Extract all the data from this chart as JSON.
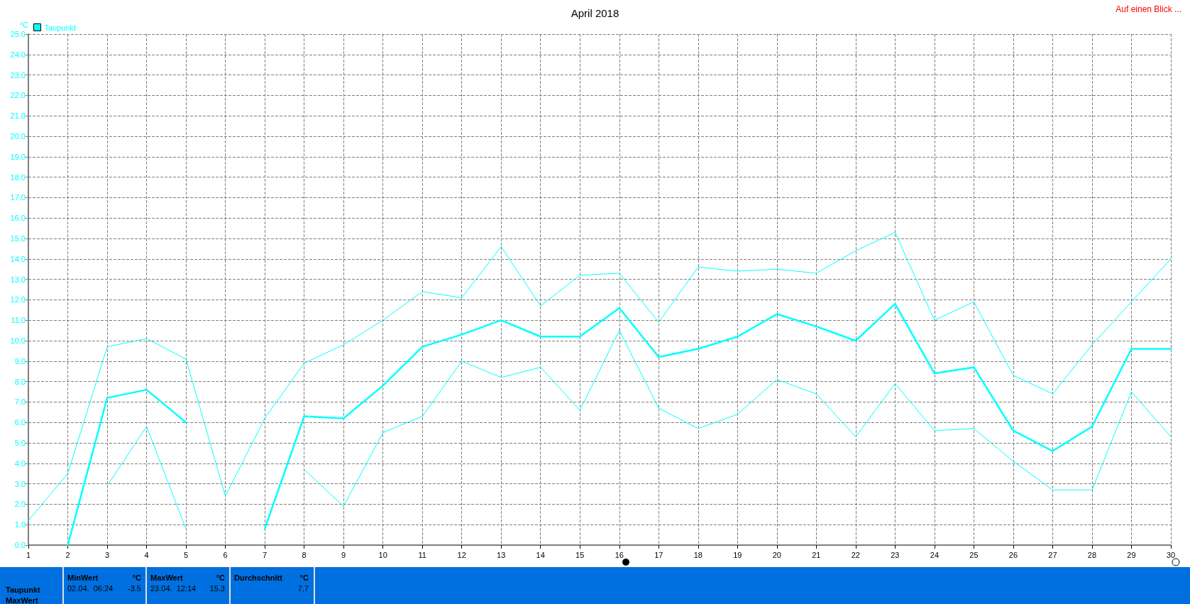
{
  "chart_data": {
    "type": "line",
    "title": "April 2018",
    "ylabel": "°C",
    "legend": "top left",
    "grid": true,
    "marker": "none",
    "line_style": "solid",
    "x": [
      1,
      2,
      3,
      4,
      5,
      6,
      7,
      8,
      9,
      10,
      11,
      12,
      13,
      14,
      15,
      16,
      17,
      18,
      19,
      20,
      21,
      22,
      23,
      24,
      25,
      26,
      27,
      28,
      29,
      30
    ],
    "xlim": [
      1,
      30
    ],
    "xticks": [
      1,
      2,
      3,
      4,
      5,
      6,
      7,
      8,
      9,
      10,
      11,
      12,
      13,
      14,
      15,
      16,
      17,
      18,
      19,
      20,
      21,
      22,
      23,
      24,
      25,
      26,
      27,
      28,
      29,
      30
    ],
    "ylim": [
      0,
      25
    ],
    "yticks": [
      {
        "value": 0,
        "label": "0.0"
      },
      {
        "value": 1,
        "label": "1.0"
      },
      {
        "value": 2,
        "label": "2.0"
      },
      {
        "value": 3,
        "label": "3.0"
      },
      {
        "value": 4,
        "label": "4.0"
      },
      {
        "value": 5,
        "label": "5.0"
      },
      {
        "value": 6,
        "label": "6.0"
      },
      {
        "value": 7,
        "label": "7.0"
      },
      {
        "value": 8,
        "label": "8.0"
      },
      {
        "value": 9,
        "label": "9.0"
      },
      {
        "value": 10,
        "label": "10.0"
      },
      {
        "value": 11,
        "label": "11.0"
      },
      {
        "value": 12,
        "label": "12.0"
      },
      {
        "value": 13,
        "label": "13.0"
      },
      {
        "value": 14,
        "label": "14.0"
      },
      {
        "value": 15,
        "label": "15.0"
      },
      {
        "value": 16,
        "label": "16.0"
      },
      {
        "value": 17,
        "label": "17.0"
      },
      {
        "value": 18,
        "label": "18.0"
      },
      {
        "value": 19,
        "label": "19.0"
      },
      {
        "value": 20,
        "label": "20.0"
      },
      {
        "value": 21,
        "label": "21.0"
      },
      {
        "value": 22,
        "label": "22.0"
      },
      {
        "value": 23,
        "label": "23.0"
      },
      {
        "value": 24,
        "label": "24.0"
      },
      {
        "value": 25,
        "label": "25.0"
      }
    ],
    "series": [
      {
        "color": "#00ffff",
        "values": [
          1.2,
          3.5,
          9.7,
          10.1,
          9.1,
          2.4,
          6.2,
          8.9,
          9.8,
          11.0,
          12.4,
          12.1,
          14.6,
          11.7,
          13.2,
          13.3,
          10.9,
          13.6,
          13.4,
          13.5,
          13.3,
          14.4,
          15.3,
          11.0,
          11.9,
          8.3,
          7.4,
          9.8,
          11.9,
          14.0
        ]
      },
      {
        "name": "Taupunkt",
        "color": "#00ffff",
        "values": [
          null,
          0.0,
          7.2,
          7.6,
          6.0,
          null,
          0.8,
          6.3,
          6.2,
          7.8,
          9.7,
          10.3,
          11.0,
          10.2,
          10.2,
          11.6,
          9.2,
          9.6,
          10.2,
          11.3,
          10.7,
          10.0,
          11.8,
          8.4,
          8.7,
          5.6,
          4.6,
          5.8,
          9.6,
          9.6
        ]
      },
      {
        "color": "#00ffff",
        "values": [
          null,
          null,
          2.9,
          5.8,
          0.8,
          null,
          null,
          3.7,
          1.9,
          5.5,
          6.3,
          9.0,
          8.2,
          8.7,
          6.6,
          10.5,
          6.7,
          5.7,
          6.4,
          8.1,
          7.4,
          5.3,
          7.9,
          5.6,
          5.7,
          4.1,
          2.7,
          2.7,
          7.5,
          5.3
        ]
      }
    ],
    "annotations": [
      "Auf einen Blick ...",
      "Taupunkt",
      "MaxWert",
      "MinWert",
      "°C",
      "02.04.  06:24",
      "-3.5",
      "MaxWert",
      "°C",
      "23.04.  12:14",
      "15.3",
      "Durchschnitt",
      "°C",
      "7.7"
    ]
  }
}
